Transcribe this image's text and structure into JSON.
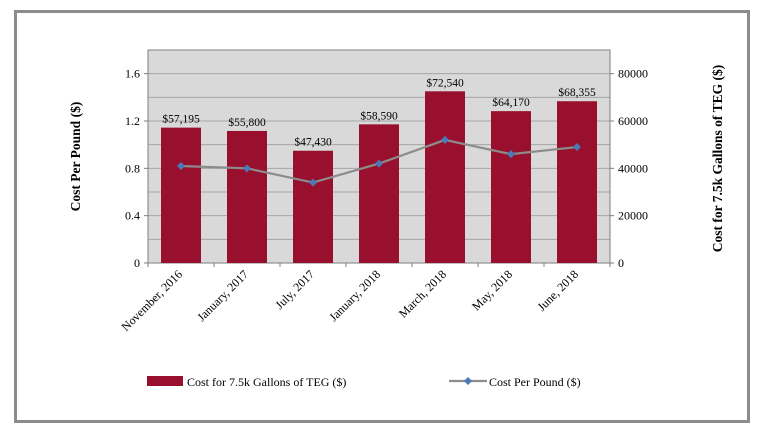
{
  "chart_data": {
    "type": "bar",
    "categories": [
      "November, 2016",
      "January, 2017",
      "July, 2017",
      "January, 2018",
      "March, 2018",
      "May, 2018",
      "June, 2018"
    ],
    "series": [
      {
        "name": "Cost for 7.5k Gallons of TEG ($)",
        "type": "bar",
        "axis": "right",
        "values": [
          57195,
          55800,
          47430,
          58590,
          72540,
          64170,
          68355
        ],
        "data_labels": [
          "$57,195",
          "$55,800",
          "$47,430",
          "$58,590",
          "$72,540",
          "$64,170",
          "$68,355"
        ],
        "color": "#99102e"
      },
      {
        "name": "Cost Per Pound ($)",
        "type": "line",
        "axis": "left",
        "values": [
          0.82,
          0.8,
          0.68,
          0.84,
          1.04,
          0.92,
          0.98
        ],
        "color": "#8c8c8c",
        "marker_color": "#4a7ab8"
      }
    ],
    "y_left": {
      "label": "Cost Per Pound ($)",
      "ticks": [
        "0",
        "0.4",
        "0.8",
        "1.2",
        "1.6"
      ],
      "min": 0,
      "max": 1.8
    },
    "y_right": {
      "label": "Cost for 7.5k Gallons of TEG ($)",
      "ticks": [
        "0",
        "20000",
        "40000",
        "60000",
        "80000"
      ],
      "min": 0,
      "max": 90000
    },
    "grid": true,
    "legend": "bottom",
    "plot_bg": "#d9d9d9"
  }
}
